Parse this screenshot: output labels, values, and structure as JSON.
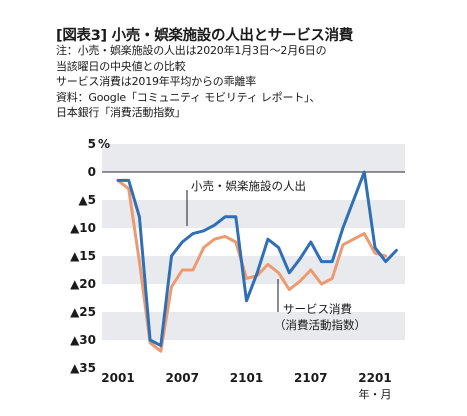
{
  "title": "[図表3] 小売・娯楽施設の人出とサービス消費",
  "notes": [
    "注：小売・娯楽施設の人出は2020年1月3日～2月6日の",
    "当該曜日の中央値との比較",
    "サービス消費は2019年平均からの乖離率",
    "資料：Google「コミュニティ モビリティ レポート」、",
    "日本銀行「消費活動指数」"
  ],
  "chart_data": {
    "type": "line",
    "y_unit_label": "%",
    "x_unit_label": "年・月",
    "ylim": [
      -37,
      5
    ],
    "y_ticks": [
      {
        "value": 5,
        "label": "5"
      },
      {
        "value": 0,
        "label": "0"
      },
      {
        "value": -5,
        "label": "▲5"
      },
      {
        "value": -10,
        "label": "▲10"
      },
      {
        "value": -15,
        "label": "▲15"
      },
      {
        "value": -20,
        "label": "▲20"
      },
      {
        "value": -25,
        "label": "▲25"
      },
      {
        "value": -30,
        "label": "▲30"
      },
      {
        "value": -35,
        "label": "▲35"
      }
    ],
    "x_range": [
      0,
      29
    ],
    "x_ticks": [
      {
        "value": 0,
        "label": "2001"
      },
      {
        "value": 6,
        "label": "2007"
      },
      {
        "value": 12,
        "label": "2101"
      },
      {
        "value": 18,
        "label": "2107"
      },
      {
        "value": 24,
        "label": "2201"
      }
    ],
    "series": [
      {
        "name": "小売・娯楽施設の人出",
        "color": "#2f6fb5",
        "x": [
          0,
          1,
          2,
          3,
          4,
          5,
          6,
          7,
          8,
          9,
          10,
          11,
          12,
          13,
          14,
          15,
          16,
          17,
          18,
          19,
          20,
          21,
          22,
          23,
          24,
          25,
          26
        ],
        "values": [
          -1.5,
          -1.5,
          -8,
          -30,
          -31,
          -15,
          -12.5,
          -11,
          -10.5,
          -9.5,
          -8,
          -8,
          -23,
          -18,
          -12,
          -13.5,
          -18,
          -15.5,
          -12.5,
          -16,
          -16,
          -10,
          -5,
          0,
          -13.5,
          -16,
          -14
        ]
      },
      {
        "name": "サービス消費\n(消費活動指数)",
        "color": "#ec9a72",
        "x": [
          0,
          1,
          2,
          3,
          4,
          5,
          6,
          7,
          8,
          9,
          10,
          11,
          12,
          13,
          14,
          15,
          16,
          17,
          18,
          19,
          20,
          21,
          22,
          23,
          24,
          25
        ],
        "values": [
          -1.5,
          -3,
          -16,
          -30.5,
          -32,
          -20.5,
          -17.5,
          -17.5,
          -13.5,
          -12,
          -11.5,
          -12.5,
          -19,
          -18.5,
          -16.5,
          -18,
          -21,
          -19.5,
          -17.5,
          -20,
          -19,
          -13,
          -12,
          -11,
          -14.5,
          -15
        ]
      }
    ],
    "annotations": [
      {
        "text": "小売・娯楽施設の人出",
        "series": 0
      },
      {
        "text": "サービス消費",
        "series": 1
      },
      {
        "text": "（消費活動指数）",
        "series": 1
      }
    ],
    "background": "alternating horizontal bands"
  }
}
